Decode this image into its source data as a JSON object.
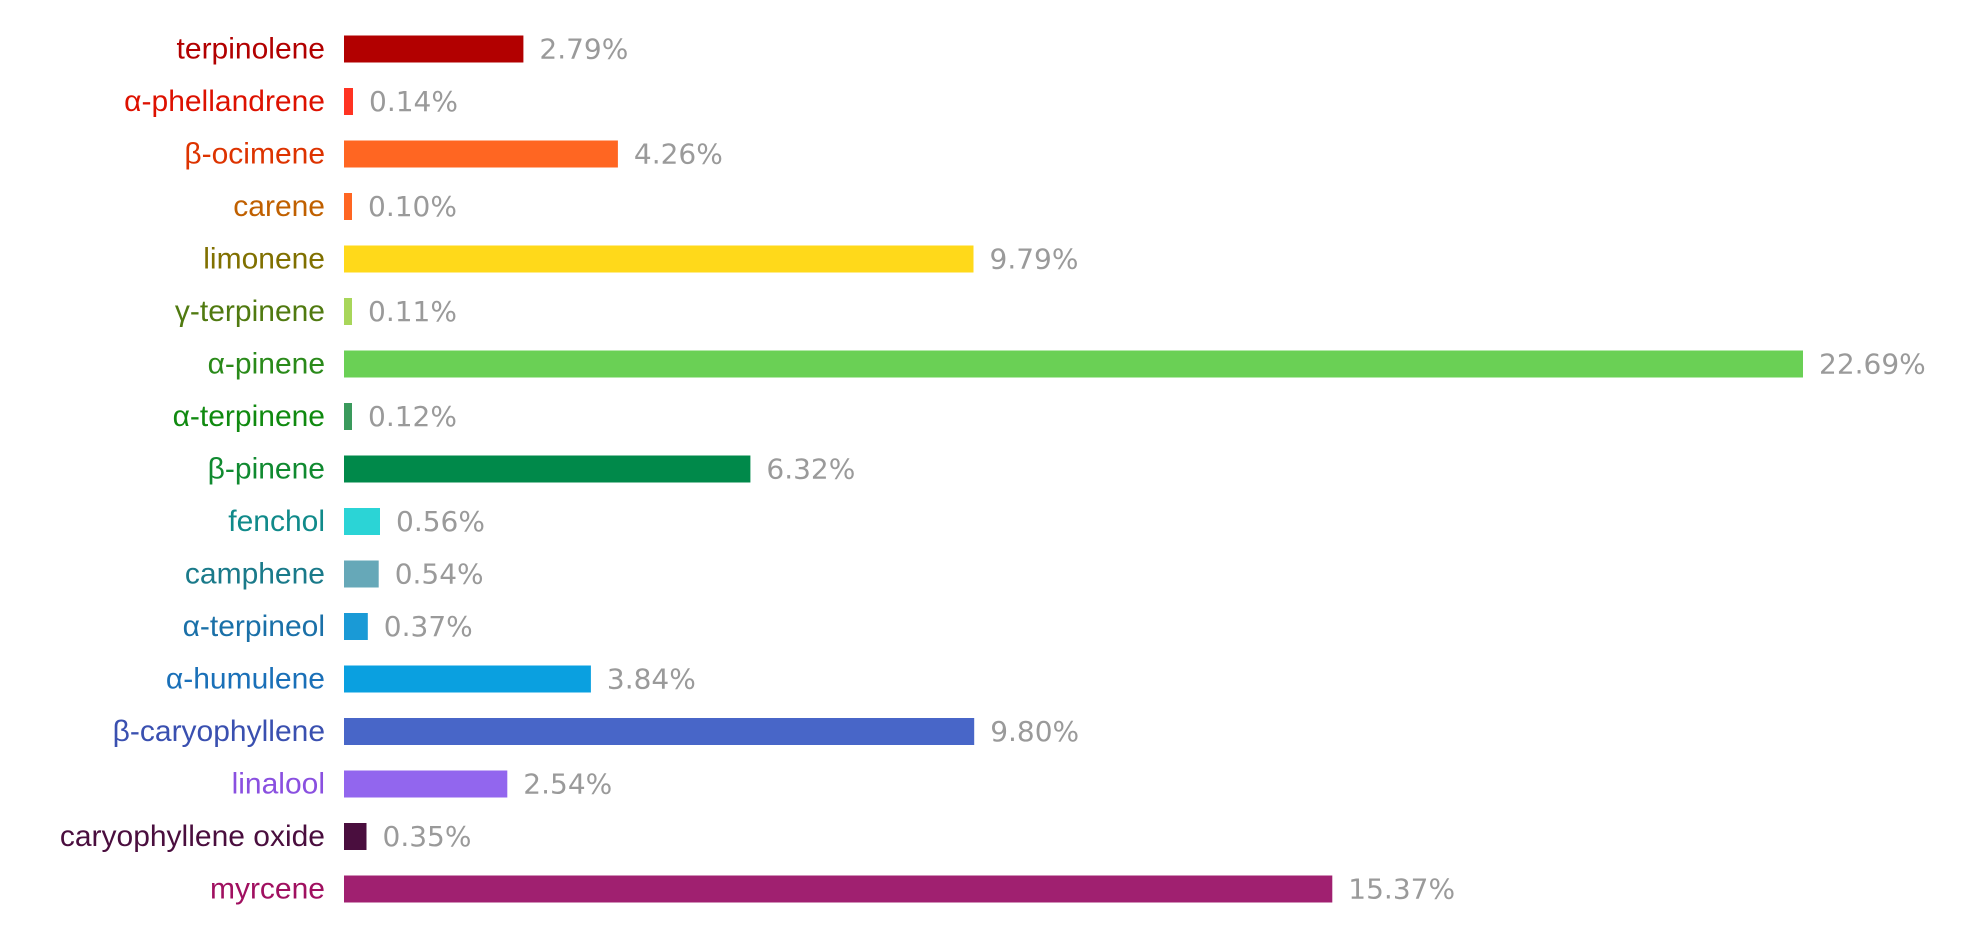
{
  "chart_data": {
    "type": "bar",
    "orientation": "horizontal",
    "title": "",
    "xlabel": "",
    "ylabel": "",
    "value_suffix": "%",
    "grid": false,
    "legend": "none",
    "xlim": [
      0,
      22.69
    ],
    "categories": [
      "terpinolene",
      "α-phellandrene",
      "β-ocimene",
      "carene",
      "limonene",
      "γ-terpinene",
      "α-pinene",
      "α-terpinene",
      "β-pinene",
      "fenchol",
      "camphene",
      "α-terpineol",
      "α-humulene",
      "β-caryophyllene",
      "linalool",
      "caryophyllene oxide",
      "myrcene"
    ],
    "values": [
      2.79,
      0.14,
      4.26,
      0.1,
      9.79,
      0.11,
      22.69,
      0.12,
      6.32,
      0.56,
      0.54,
      0.37,
      3.84,
      9.8,
      2.54,
      0.35,
      15.37
    ],
    "value_labels": [
      "2.79%",
      "0.14%",
      "4.26%",
      "0.10%",
      "9.79%",
      "0.11%",
      "22.69%",
      "0.12%",
      "6.32%",
      "0.56%",
      "0.54%",
      "0.37%",
      "3.84%",
      "9.80%",
      "2.54%",
      "0.35%",
      "15.37%"
    ],
    "bar_colors": [
      "#b20000",
      "#ff3322",
      "#ff6622",
      "#ff6622",
      "#ffd91a",
      "#a8d65a",
      "#6ad055",
      "#3a9a5c",
      "#00894a",
      "#2bd4d6",
      "#66a8b8",
      "#1a9ad6",
      "#0aa0e0",
      "#4866c8",
      "#9266ee",
      "#4a0e3e",
      "#a02070"
    ],
    "label_colors": [
      "#b20000",
      "#dd1100",
      "#dd3300",
      "#c06000",
      "#807000",
      "#507a10",
      "#2a8a1a",
      "#108a10",
      "#108a30",
      "#108a8a",
      "#1a7a8a",
      "#1a70a8",
      "#1a70b8",
      "#3a50b0",
      "#8a50e0",
      "#4a0e3e",
      "#a01060"
    ]
  }
}
